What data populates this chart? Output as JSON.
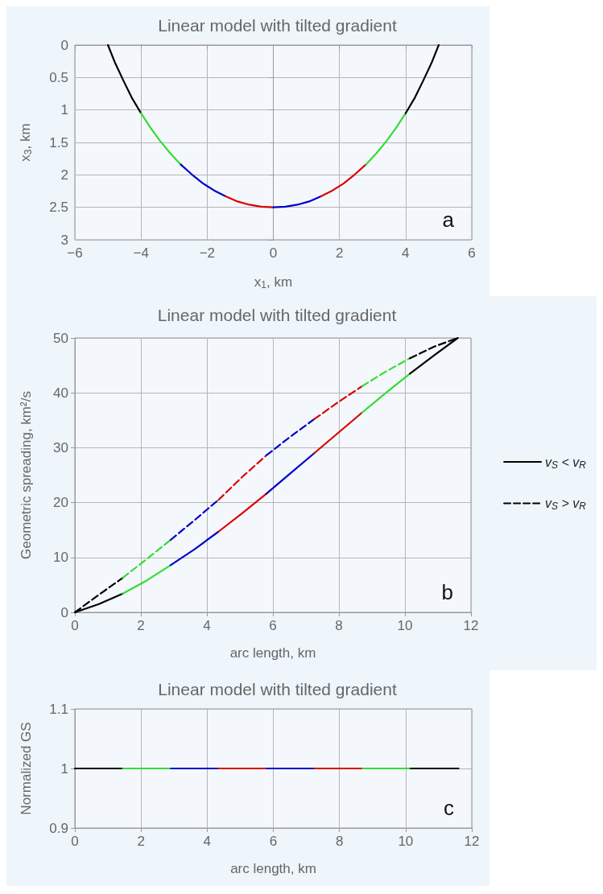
{
  "chart_data": [
    {
      "type": "line",
      "title": "Linear model with tilted gradient",
      "xlabel": "x$_{1}$, km",
      "ylabel": "x$_{3}$, km",
      "xlim": [
        -6,
        6
      ],
      "xticks": [
        {
          "value": -6,
          "label": "−6"
        },
        {
          "value": -4,
          "label": "−4"
        },
        {
          "value": -2,
          "label": "−2"
        },
        0,
        2,
        4,
        6
      ],
      "ylim": [
        3,
        0
      ],
      "yticks": [
        0,
        0.5,
        1,
        1.5,
        2,
        2.5,
        3
      ],
      "grid": true,
      "marker": "none",
      "annotations": [
        "a"
      ],
      "series": [
        {
          "color": "#000000",
          "x": [
            -5,
            -4.78,
            -4.53,
            -4.28,
            -4.0
          ],
          "values": [
            0,
            0.28,
            0.55,
            0.81,
            1.05
          ]
        },
        {
          "color": "#33dd33",
          "x": [
            -4.0,
            -3.72,
            -3.42,
            -3.11,
            -2.8
          ],
          "values": [
            1.05,
            1.27,
            1.48,
            1.67,
            1.84
          ]
        },
        {
          "color": "#0000cc",
          "x": [
            -2.8,
            -2.47,
            -2.13,
            -1.79,
            -1.44
          ],
          "values": [
            1.84,
            1.99,
            2.13,
            2.24,
            2.33
          ]
        },
        {
          "color": "#dd0000",
          "x": [
            -1.44,
            -1.08,
            -0.72,
            -0.36,
            0
          ],
          "values": [
            2.33,
            2.41,
            2.46,
            2.49,
            2.5
          ]
        },
        {
          "color": "#0000cc",
          "x": [
            0,
            0.36,
            0.72,
            1.08,
            1.44
          ],
          "values": [
            2.5,
            2.49,
            2.46,
            2.41,
            2.33
          ]
        },
        {
          "color": "#dd0000",
          "x": [
            1.44,
            1.79,
            2.13,
            2.47,
            2.8
          ],
          "values": [
            2.33,
            2.24,
            2.13,
            1.99,
            1.84
          ]
        },
        {
          "color": "#33dd33",
          "x": [
            2.8,
            3.11,
            3.42,
            3.72,
            4.0
          ],
          "values": [
            1.84,
            1.67,
            1.48,
            1.27,
            1.05
          ]
        },
        {
          "color": "#000000",
          "x": [
            4.0,
            4.28,
            4.53,
            4.78,
            5
          ],
          "values": [
            1.05,
            0.81,
            0.55,
            0.28,
            0
          ]
        }
      ]
    },
    {
      "type": "line",
      "title": "Linear model with tilted gradient",
      "xlabel": "arc length, km",
      "ylabel": "Geometric spreading, km²/s",
      "xlim": [
        0,
        12
      ],
      "xticks": [
        0,
        2,
        4,
        6,
        8,
        10,
        12
      ],
      "ylim": [
        0,
        50
      ],
      "yticks": [
        0,
        10,
        20,
        30,
        40,
        50
      ],
      "grid": true,
      "marker": "none",
      "legend": "right",
      "annotations": [
        "b"
      ],
      "series": [
        {
          "name": "v$_{S}$ < v$_{R}$",
          "color": "#000000",
          "line_style": "solid",
          "x": [
            0,
            0.725,
            1.45
          ],
          "values": [
            0,
            1.5,
            3.4
          ]
        },
        {
          "color": "#33dd33",
          "line_style": "solid",
          "x": [
            1.45,
            2.175,
            2.9
          ],
          "values": [
            3.4,
            5.8,
            8.6
          ]
        },
        {
          "color": "#0000cc",
          "line_style": "solid",
          "x": [
            2.9,
            3.625,
            4.35
          ],
          "values": [
            8.6,
            11.5,
            14.7
          ]
        },
        {
          "color": "#dd0000",
          "line_style": "solid",
          "x": [
            4.35,
            5.075,
            5.8
          ],
          "values": [
            14.7,
            18.1,
            21.6
          ]
        },
        {
          "color": "#0000cc",
          "line_style": "solid",
          "x": [
            5.8,
            6.525,
            7.25
          ],
          "values": [
            21.6,
            25.3,
            29.0
          ]
        },
        {
          "color": "#dd0000",
          "line_style": "solid",
          "x": [
            7.25,
            7.975,
            8.7
          ],
          "values": [
            29.0,
            32.7,
            36.4
          ]
        },
        {
          "color": "#33dd33",
          "line_style": "solid",
          "x": [
            8.7,
            9.425,
            10.15
          ],
          "values": [
            36.4,
            40.0,
            43.5
          ]
        },
        {
          "color": "#000000",
          "line_style": "solid",
          "x": [
            10.15,
            10.875,
            11.6
          ],
          "values": [
            43.5,
            46.8,
            50
          ]
        },
        {
          "name": "v$_{S}$ > v$_{R}$",
          "color": "#000000",
          "line_style": "dashed",
          "x": [
            0,
            0.725,
            1.45
          ],
          "values": [
            0,
            3.2,
            6.3
          ]
        },
        {
          "color": "#33dd33",
          "line_style": "dashed",
          "x": [
            1.45,
            2.175,
            2.9
          ],
          "values": [
            6.3,
            9.7,
            13.2
          ]
        },
        {
          "color": "#0000cc",
          "line_style": "dashed",
          "x": [
            2.9,
            3.625,
            4.35
          ],
          "values": [
            13.2,
            16.8,
            20.5
          ]
        },
        {
          "color": "#dd0000",
          "line_style": "dashed",
          "x": [
            4.35,
            5.075,
            5.8
          ],
          "values": [
            20.5,
            24.7,
            28.6
          ]
        },
        {
          "color": "#0000cc",
          "line_style": "dashed",
          "x": [
            5.8,
            6.525,
            7.25
          ],
          "values": [
            28.6,
            32.0,
            35.2
          ]
        },
        {
          "color": "#dd0000",
          "line_style": "dashed",
          "x": [
            7.25,
            7.975,
            8.7
          ],
          "values": [
            35.2,
            38.3,
            41.2
          ]
        },
        {
          "color": "#33dd33",
          "line_style": "dashed",
          "x": [
            8.7,
            9.425,
            10.15
          ],
          "values": [
            41.2,
            43.9,
            46.3
          ]
        },
        {
          "color": "#000000",
          "line_style": "dashed",
          "x": [
            10.15,
            10.875,
            11.6
          ],
          "values": [
            46.3,
            48.4,
            50
          ]
        }
      ]
    },
    {
      "type": "line",
      "title": "Linear model with tilted gradient",
      "xlabel": "arc length, km",
      "ylabel": "Normalized GS",
      "xlim": [
        0,
        12
      ],
      "xticks": [
        0,
        2,
        4,
        6,
        8,
        10,
        12
      ],
      "ylim": [
        0.9,
        1.1
      ],
      "yticks": [
        0.9,
        1,
        1.1
      ],
      "grid": true,
      "marker": "none",
      "annotations": [
        "c"
      ],
      "series": [
        {
          "color": "#000000",
          "x": [
            0,
            1.45
          ],
          "values": [
            1,
            1
          ]
        },
        {
          "color": "#33dd33",
          "x": [
            1.45,
            2.9
          ],
          "values": [
            1,
            1
          ]
        },
        {
          "color": "#0000cc",
          "x": [
            2.9,
            4.35
          ],
          "values": [
            1,
            1
          ]
        },
        {
          "color": "#dd0000",
          "x": [
            4.35,
            5.8
          ],
          "values": [
            1,
            1
          ]
        },
        {
          "color": "#0000cc",
          "x": [
            5.8,
            7.25
          ],
          "values": [
            1,
            1
          ]
        },
        {
          "color": "#dd0000",
          "x": [
            7.25,
            8.7
          ],
          "values": [
            1,
            1
          ]
        },
        {
          "color": "#33dd33",
          "x": [
            8.7,
            10.15
          ],
          "values": [
            1,
            1
          ]
        },
        {
          "color": "#000000",
          "x": [
            10.15,
            11.6
          ],
          "values": [
            1,
            1
          ]
        }
      ]
    }
  ]
}
